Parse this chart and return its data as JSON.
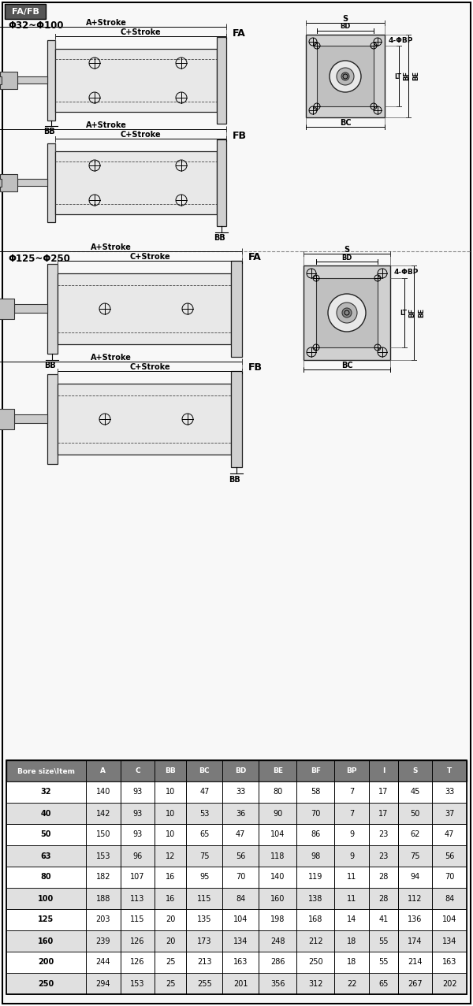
{
  "title": "FA/FB",
  "section1_title": "Φ32~Φ100",
  "section2_title": "Φ125~Φ250",
  "table_headers": [
    "Bore size\\Item",
    "A",
    "C",
    "BB",
    "BC",
    "BD",
    "BE",
    "BF",
    "BP",
    "I",
    "S",
    "T"
  ],
  "table_data": [
    [
      "32",
      "140",
      "93",
      "10",
      "47",
      "33",
      "80",
      "58",
      "7",
      "17",
      "45",
      "33"
    ],
    [
      "40",
      "142",
      "93",
      "10",
      "53",
      "36",
      "90",
      "70",
      "7",
      "17",
      "50",
      "37"
    ],
    [
      "50",
      "150",
      "93",
      "10",
      "65",
      "47",
      "104",
      "86",
      "9",
      "23",
      "62",
      "47"
    ],
    [
      "63",
      "153",
      "96",
      "12",
      "75",
      "56",
      "118",
      "98",
      "9",
      "23",
      "75",
      "56"
    ],
    [
      "80",
      "182",
      "107",
      "16",
      "95",
      "70",
      "140",
      "119",
      "11",
      "28",
      "94",
      "70"
    ],
    [
      "100",
      "188",
      "113",
      "16",
      "115",
      "84",
      "160",
      "138",
      "11",
      "28",
      "112",
      "84"
    ],
    [
      "125",
      "203",
      "115",
      "20",
      "135",
      "104",
      "198",
      "168",
      "14",
      "41",
      "136",
      "104"
    ],
    [
      "160",
      "239",
      "126",
      "20",
      "173",
      "134",
      "248",
      "212",
      "18",
      "55",
      "174",
      "134"
    ],
    [
      "200",
      "244",
      "126",
      "25",
      "213",
      "163",
      "286",
      "250",
      "18",
      "55",
      "214",
      "163"
    ],
    [
      "250",
      "294",
      "153",
      "25",
      "255",
      "201",
      "356",
      "312",
      "22",
      "65",
      "267",
      "202"
    ]
  ],
  "header_bg": "#7a7a7a",
  "header_fg": "#ffffff",
  "row_bg_odd": "#ffffff",
  "row_bg_even": "#e0e0e0",
  "border_color": "#000000",
  "bg_color": "#ffffff",
  "outer_border": "#000000"
}
